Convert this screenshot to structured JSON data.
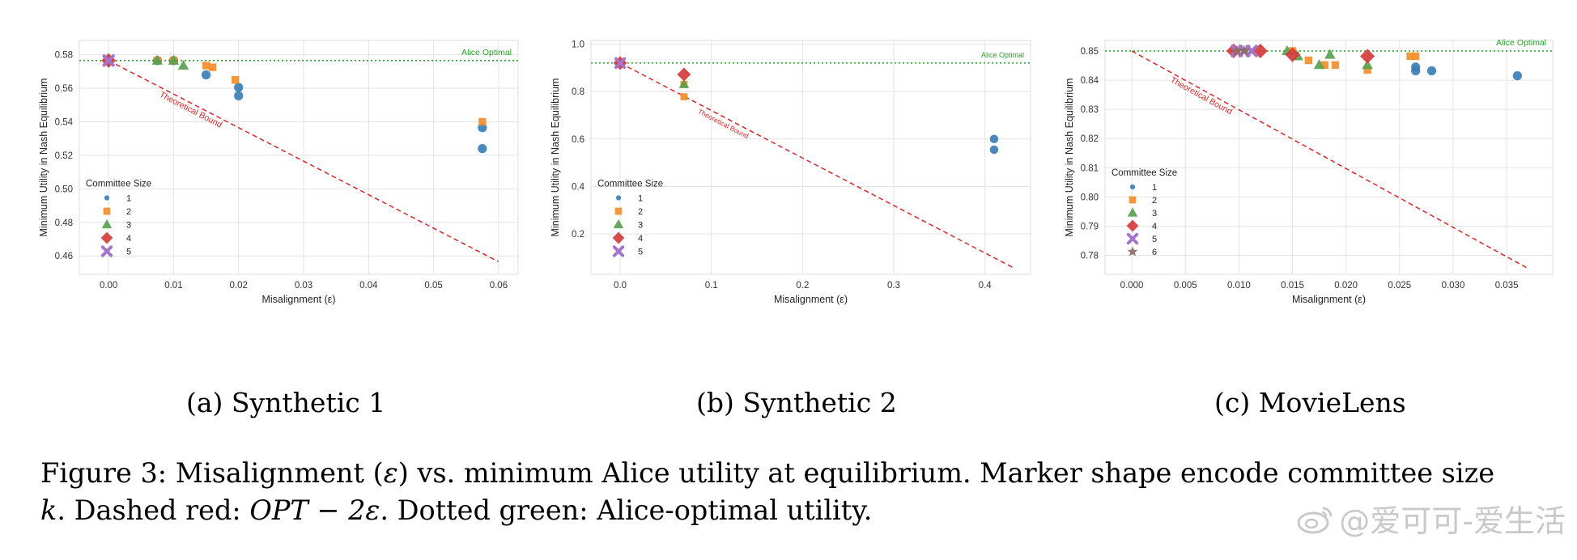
{
  "figure": {
    "subcaptions": [
      "(a) Synthetic 1",
      "(b) Synthetic 2",
      "(c) MovieLens"
    ],
    "caption_parts": {
      "p1": "Figure 3: Misalignment (",
      "eps": "ε",
      "p2": ") vs. minimum Alice utility at equilibrium. Marker shape encode committee size",
      "k": "k",
      "p3": ". Dashed red: ",
      "opt": "OPT − 2ε",
      "p4": ". Dotted green: Alice-optimal utility."
    },
    "watermark": "@爱可可-爱生活"
  },
  "styles": {
    "1": {
      "color": "#3a7fb5",
      "marker": "circle"
    },
    "2": {
      "color": "#f28e2b",
      "marker": "square"
    },
    "3": {
      "color": "#59a14f",
      "marker": "triangle"
    },
    "4": {
      "color": "#d63b3b",
      "marker": "diamond"
    },
    "5": {
      "color": "#a374c9",
      "marker": "x"
    },
    "6": {
      "color": "#8c6d62",
      "marker": "star"
    }
  },
  "chart_data": [
    {
      "type": "scatter",
      "xlabel": "Misalignment (ε)",
      "ylabel": "Minimum Utility in Nash Equilibrium",
      "xlim": [
        -0.0045,
        0.063
      ],
      "ylim": [
        0.449,
        0.5885
      ],
      "xticks": [
        0.0,
        0.01,
        0.02,
        0.03,
        0.04,
        0.05,
        0.06
      ],
      "xtick_labels": [
        "0.00",
        "0.01",
        "0.02",
        "0.03",
        "0.04",
        "0.05",
        "0.06"
      ],
      "yticks": [
        0.46,
        0.48,
        0.5,
        0.52,
        0.54,
        0.56,
        0.58
      ],
      "ytick_labels": [
        "0.46",
        "0.48",
        "0.50",
        "0.52",
        "0.54",
        "0.56",
        "0.58"
      ],
      "alice_optimal": {
        "label": "Alice Optimal",
        "y": 0.5765
      },
      "theoretical_bound": {
        "label": "Theoretical Bound",
        "x": [
          0.0,
          0.06
        ],
        "y": [
          0.5765,
          0.4565
        ],
        "label_at_x": 0.0075
      },
      "legend": {
        "title": "Committee Size",
        "entries": [
          "1",
          "2",
          "3",
          "4",
          "5"
        ]
      },
      "series": [
        {
          "name": "1",
          "points": [
            [
              0.0,
              0.5765
            ],
            [
              0.0075,
              0.5765
            ],
            [
              0.01,
              0.5765
            ],
            [
              0.015,
              0.568
            ],
            [
              0.02,
              0.5605
            ],
            [
              0.02,
              0.5555
            ],
            [
              0.0575,
              0.5365
            ],
            [
              0.0575,
              0.524
            ]
          ]
        },
        {
          "name": "2",
          "points": [
            [
              0.0,
              0.5765
            ],
            [
              0.0075,
              0.5765
            ],
            [
              0.01,
              0.5765
            ],
            [
              0.015,
              0.5735
            ],
            [
              0.016,
              0.5725
            ],
            [
              0.0195,
              0.565
            ],
            [
              0.0575,
              0.54
            ]
          ]
        },
        {
          "name": "3",
          "points": [
            [
              0.0,
              0.5765
            ],
            [
              0.0075,
              0.5765
            ],
            [
              0.01,
              0.5765
            ],
            [
              0.0115,
              0.5735
            ]
          ]
        },
        {
          "name": "4",
          "points": [
            [
              0.0,
              0.5765
            ]
          ]
        },
        {
          "name": "5",
          "points": [
            [
              0.0,
              0.5765
            ]
          ]
        }
      ]
    },
    {
      "type": "scatter",
      "xlabel": "Misalignment (ε)",
      "ylabel": "Minimum Utility in Nash Equilibrium",
      "xlim": [
        -0.032,
        0.45
      ],
      "ylim": [
        0.03,
        1.015
      ],
      "xticks": [
        0.0,
        0.1,
        0.2,
        0.3,
        0.4
      ],
      "xtick_labels": [
        "0.0",
        "0.1",
        "0.2",
        "0.3",
        "0.4"
      ],
      "yticks": [
        0.2,
        0.4,
        0.6,
        0.8,
        1.0
      ],
      "ytick_labels": [
        "0.2",
        "0.4",
        "0.6",
        "0.8",
        "1.0"
      ],
      "alice_optimal": {
        "label": "Alice Optimal",
        "y": 0.92
      },
      "theoretical_bound": {
        "label": "Theoretical Bound",
        "x": [
          0.0,
          0.43
        ],
        "y": [
          0.92,
          0.06
        ],
        "label_at_x": 0.083
      },
      "legend": {
        "title": "Committee Size",
        "entries": [
          "1",
          "2",
          "3",
          "4",
          "5"
        ]
      },
      "series": [
        {
          "name": "1",
          "points": [
            [
              0.0,
              0.92
            ],
            [
              0.41,
              0.6
            ],
            [
              0.41,
              0.555
            ]
          ]
        },
        {
          "name": "2",
          "points": [
            [
              0.0,
              0.92
            ],
            [
              0.07,
              0.83
            ],
            [
              0.07,
              0.778
            ]
          ]
        },
        {
          "name": "3",
          "points": [
            [
              0.0,
              0.92
            ],
            [
              0.07,
              0.83
            ]
          ]
        },
        {
          "name": "4",
          "points": [
            [
              0.0,
              0.92
            ],
            [
              0.07,
              0.872
            ]
          ]
        },
        {
          "name": "5",
          "points": [
            [
              0.0,
              0.92
            ]
          ]
        }
      ]
    },
    {
      "type": "scatter",
      "xlabel": "Misalignment (ε)",
      "ylabel": "Minimum Utility in Nash Equilibrium",
      "xlim": [
        -0.0025,
        0.0393
      ],
      "ylim": [
        0.7735,
        0.8536
      ],
      "xticks": [
        0.0,
        0.005,
        0.01,
        0.015,
        0.02,
        0.025,
        0.03,
        0.035
      ],
      "xtick_labels": [
        "0.000",
        "0.005",
        "0.010",
        "0.015",
        "0.020",
        "0.025",
        "0.030",
        "0.035"
      ],
      "yticks": [
        0.78,
        0.79,
        0.8,
        0.81,
        0.82,
        0.83,
        0.84,
        0.85
      ],
      "ytick_labels": [
        "0.78",
        "0.79",
        "0.80",
        "0.81",
        "0.82",
        "0.83",
        "0.84",
        "0.85"
      ],
      "alice_optimal": {
        "label": "Alice Optimal",
        "y": 0.85
      },
      "theoretical_bound": {
        "label": "Theoretical Bound",
        "x": [
          0.0,
          0.037
        ],
        "y": [
          0.85,
          0.7755
        ],
        "label_at_x": 0.0034
      },
      "legend": {
        "title": "Committee Size",
        "entries": [
          "1",
          "2",
          "3",
          "4",
          "5",
          "6"
        ]
      },
      "series": [
        {
          "name": "1",
          "points": [
            [
              0.0265,
              0.8445
            ],
            [
              0.0265,
              0.8432
            ],
            [
              0.028,
              0.8432
            ],
            [
              0.036,
              0.8415
            ]
          ]
        },
        {
          "name": "2",
          "points": [
            [
              0.015,
              0.85
            ],
            [
              0.0165,
              0.8468
            ],
            [
              0.018,
              0.8452
            ],
            [
              0.019,
              0.8452
            ],
            [
              0.022,
              0.8435
            ],
            [
              0.026,
              0.8482
            ],
            [
              0.0265,
              0.8482
            ]
          ]
        },
        {
          "name": "3",
          "points": [
            [
              0.0145,
              0.85
            ],
            [
              0.0155,
              0.8482
            ],
            [
              0.0175,
              0.8452
            ],
            [
              0.0185,
              0.8487
            ],
            [
              0.022,
              0.8452
            ]
          ]
        },
        {
          "name": "4",
          "points": [
            [
              0.0095,
              0.85
            ],
            [
              0.012,
              0.85
            ],
            [
              0.015,
              0.8487
            ],
            [
              0.022,
              0.8482
            ]
          ]
        },
        {
          "name": "5",
          "points": [
            [
              0.0098,
              0.85
            ],
            [
              0.0105,
              0.85
            ],
            [
              0.0112,
              0.85
            ]
          ]
        },
        {
          "name": "6",
          "points": [
            [
              0.0098,
              0.85
            ],
            [
              0.0105,
              0.85
            ]
          ]
        }
      ]
    }
  ]
}
